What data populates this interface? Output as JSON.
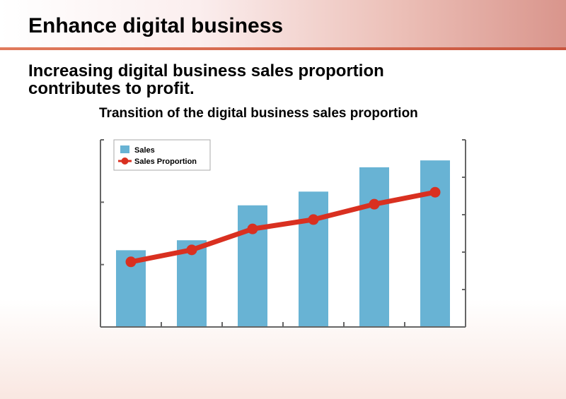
{
  "slide": {
    "title": "Enhance digital business",
    "subtitle_line1": "Increasing digital business sales proportion",
    "subtitle_line2": "contributes to profit."
  },
  "colors": {
    "bar": "#68b3d4",
    "line": "#d93020",
    "header_rule": "#d0604a"
  },
  "chart_data": {
    "type": "bar+line",
    "title": "Transition of the digital business sales proportion",
    "categories": [
      "",
      "",
      "",
      "",
      "",
      ""
    ],
    "legend": {
      "placement": "top-left",
      "entries": [
        "Sales",
        "Sales Proportion"
      ]
    },
    "grid": false,
    "tick_labels_shown": false,
    "series": [
      {
        "name": "Sales",
        "type": "bar",
        "axis": "left",
        "values": [
          1.23,
          1.39,
          1.95,
          2.17,
          2.56,
          2.67
        ]
      },
      {
        "name": "Sales Proportion",
        "type": "line",
        "axis": "right",
        "values": [
          1.74,
          2.06,
          2.62,
          2.87,
          3.28,
          3.6
        ]
      }
    ],
    "left_axis": {
      "ylim": [
        0,
        3
      ],
      "ticks": [
        0,
        1,
        2,
        3
      ]
    },
    "right_axis": {
      "ylim": [
        0,
        5
      ],
      "ticks": [
        0,
        1,
        2,
        3,
        4,
        5
      ]
    }
  }
}
